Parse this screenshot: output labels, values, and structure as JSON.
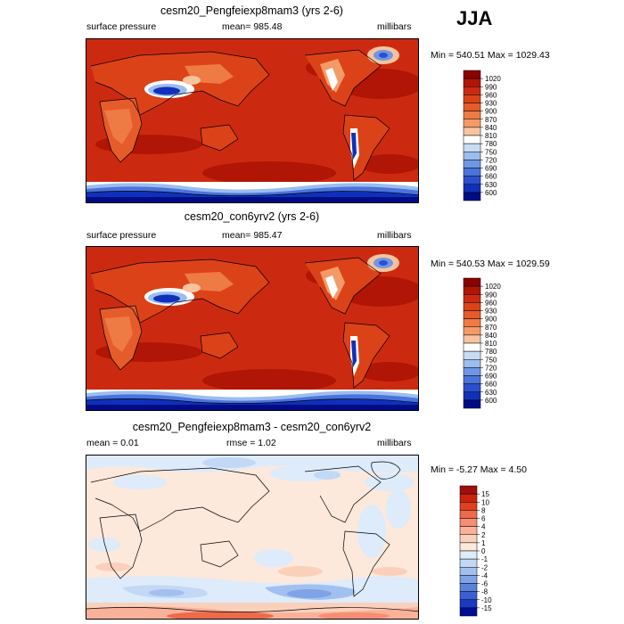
{
  "season": "JJA",
  "panels": [
    {
      "title": "cesm20_Pengfeiexp8mam3 (yrs 2-6)",
      "left_label": "surface pressure",
      "center_label": "mean= 985.48",
      "right_label": "millibars",
      "minmax": "Min = 540.51 Max = 1029.43",
      "type": "field"
    },
    {
      "title": "cesm20_con6yrv2 (yrs 2-6)",
      "left_label": "surface pressure",
      "center_label": "mean= 985.47",
      "right_label": "millibars",
      "minmax": "Min = 540.53 Max = 1029.59",
      "type": "field"
    },
    {
      "title": "cesm20_Pengfeiexp8mam3 - cesm20_con6yrv2",
      "left_label": "mean =   0.01",
      "center_label": "rmse =   1.02",
      "right_label": "millibars",
      "minmax": "Min =  -5.27 Max =   4.50",
      "type": "diff"
    }
  ],
  "colorbars": {
    "field": {
      "labels": [
        "1020",
        "990",
        "960",
        "930",
        "900",
        "870",
        "840",
        "810",
        "780",
        "750",
        "720",
        "690",
        "660",
        "630",
        "600"
      ],
      "colors": [
        "#8b0000",
        "#b01505",
        "#cc2a10",
        "#dc4218",
        "#e65b2a",
        "#ee7a44",
        "#f49a68",
        "#f8c39e",
        "#ffffff",
        "#c9dcf5",
        "#9bbdef",
        "#6e97e6",
        "#4a73dc",
        "#2a4fcf",
        "#1030bb",
        "#000c86"
      ]
    },
    "diff": {
      "labels": [
        "15",
        "10",
        "8",
        "6",
        "4",
        "2",
        "1",
        "0",
        "-1",
        "-2",
        "-4",
        "-6",
        "-8",
        "-10",
        "-15"
      ],
      "colors": [
        "#a30d0d",
        "#c8250e",
        "#e0401f",
        "#ee6a4a",
        "#f58e74",
        "#f9b199",
        "#fbd0bb",
        "#fde8dc",
        "#ddebfb",
        "#c3d8f5",
        "#a2c0ef",
        "#7fa3e6",
        "#5a82dd",
        "#3b5fd2",
        "#1d39c2",
        "#000e96"
      ]
    }
  }
}
